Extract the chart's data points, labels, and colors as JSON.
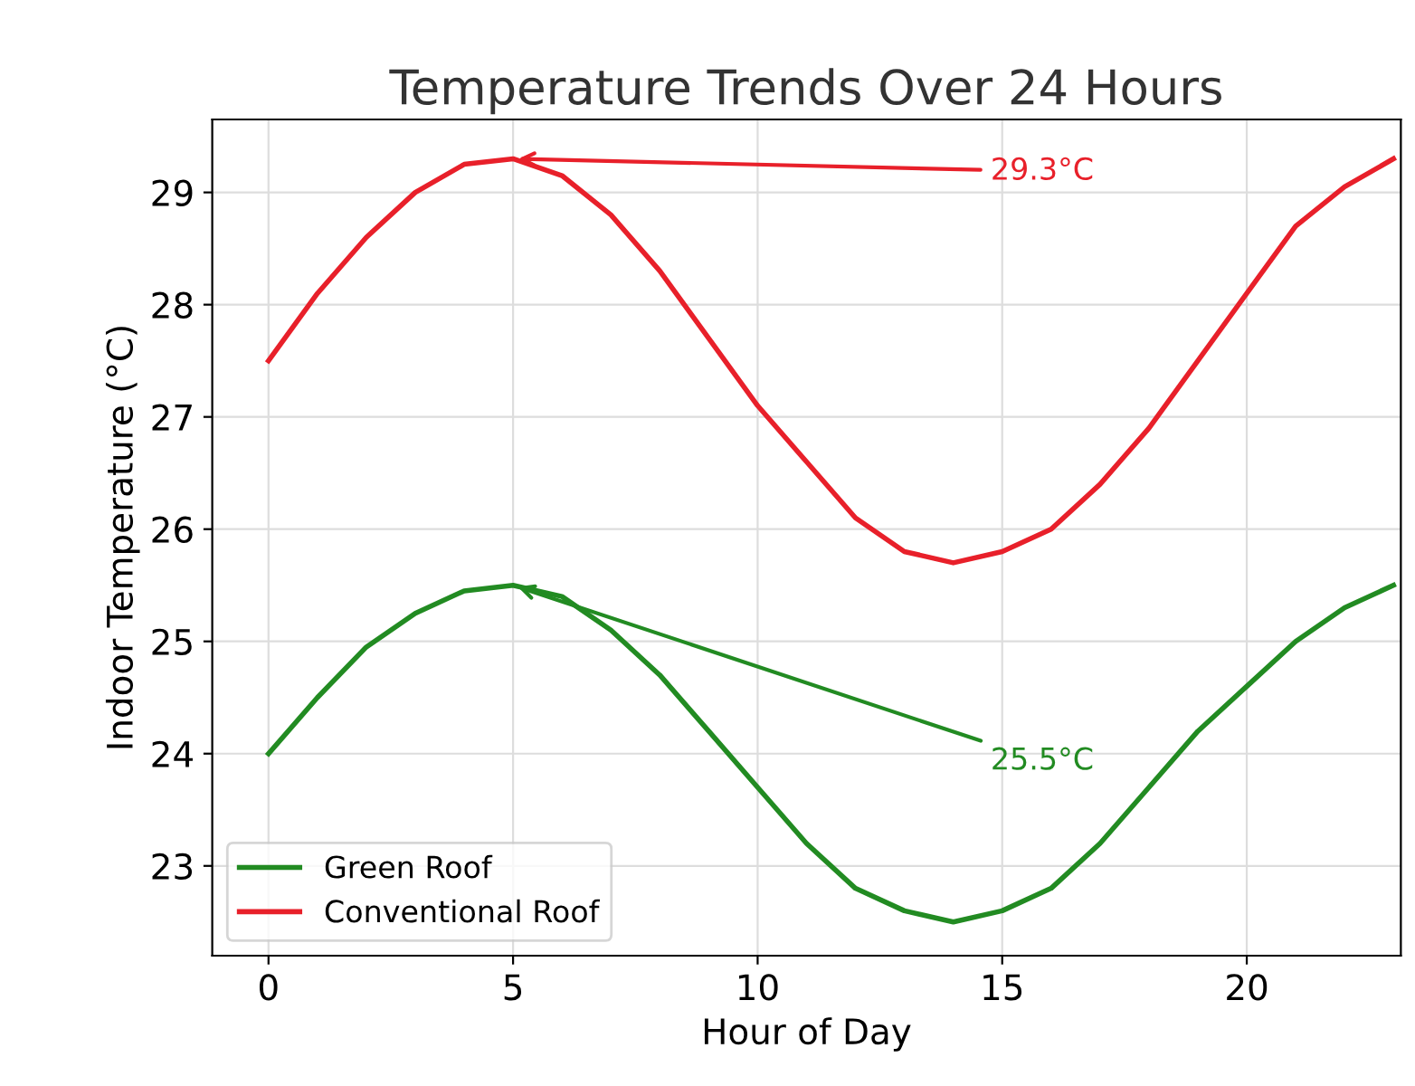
{
  "chart_data": {
    "type": "line",
    "title": "Temperature Trends Over 24 Hours",
    "xlabel": "Hour of Day",
    "ylabel": "Indoor Temperature (°C)",
    "x": [
      0,
      1,
      2,
      3,
      4,
      5,
      6,
      7,
      8,
      9,
      10,
      11,
      12,
      13,
      14,
      15,
      16,
      17,
      18,
      19,
      20,
      21,
      22,
      23
    ],
    "series": [
      {
        "name": "Green Roof",
        "color": "#228b22",
        "values": [
          24.0,
          24.5,
          24.95,
          25.25,
          25.45,
          25.5,
          25.4,
          25.1,
          24.7,
          24.2,
          23.7,
          23.2,
          22.8,
          22.6,
          22.5,
          22.6,
          22.8,
          23.2,
          23.7,
          24.2,
          24.6,
          25.0,
          25.3,
          25.5
        ]
      },
      {
        "name": "Conventional Roof",
        "color": "#e8202a",
        "values": [
          27.5,
          28.1,
          28.6,
          29.0,
          29.25,
          29.3,
          29.15,
          28.8,
          28.3,
          27.7,
          27.1,
          26.6,
          26.1,
          25.8,
          25.7,
          25.8,
          26.0,
          26.4,
          26.9,
          27.5,
          28.1,
          28.7,
          29.05,
          29.3
        ]
      }
    ],
    "annotations": [
      {
        "text": "29.3°C",
        "x": 5,
        "y": 29.3
      },
      {
        "text": "25.5°C",
        "x": 5,
        "y": 25.5
      }
    ],
    "xlim": [
      -1.15,
      23.15
    ],
    "ylim": [
      22.2,
      29.65
    ],
    "xticks": [
      0,
      5,
      10,
      15,
      20
    ],
    "yticks": [
      23,
      24,
      25,
      26,
      27,
      28,
      29
    ],
    "grid": true,
    "legend": "bottom left",
    "marker": "none",
    "line_style": "solid"
  }
}
